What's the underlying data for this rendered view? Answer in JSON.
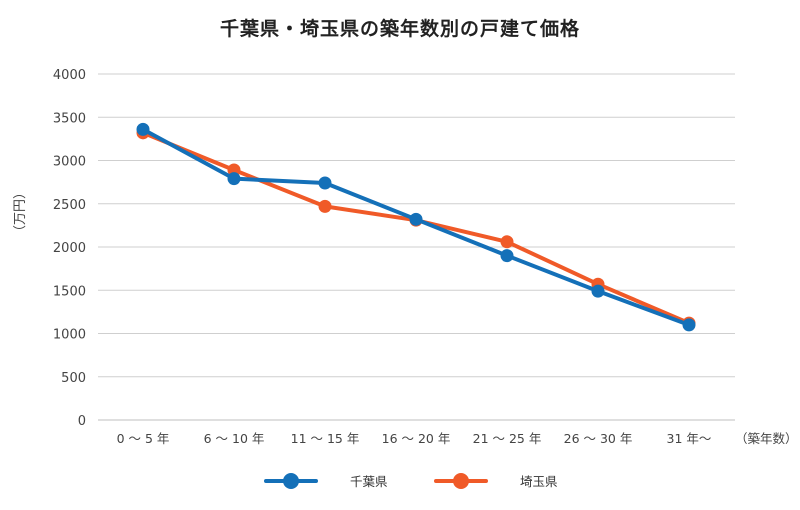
{
  "title": "千葉県・埼玉県の築年数別の戸建て価格",
  "chart_data": {
    "type": "line",
    "title": "千葉県・埼玉県の築年数別の戸建て価格",
    "ylabel": "（万円）",
    "xunit": "（築年数）",
    "categories": [
      "0 〜 5 年",
      "6 〜 10 年",
      "11 〜 15 年",
      "16 〜 20 年",
      "21 〜 25 年",
      "26 〜 30 年",
      "31 年〜"
    ],
    "ylim": [
      0,
      4000
    ],
    "yticks": [
      0,
      500,
      1000,
      1500,
      2000,
      2500,
      3000,
      3500,
      4000
    ],
    "grid": true,
    "legend": "bottom",
    "series": [
      {
        "name": "千葉県",
        "color": "#1470b8",
        "values": [
          3360,
          2790,
          2740,
          2320,
          1900,
          1490,
          1100
        ]
      },
      {
        "name": "埼玉県",
        "color": "#f05a28",
        "values": [
          3320,
          2890,
          2470,
          2310,
          2060,
          1570,
          1120
        ]
      }
    ]
  }
}
